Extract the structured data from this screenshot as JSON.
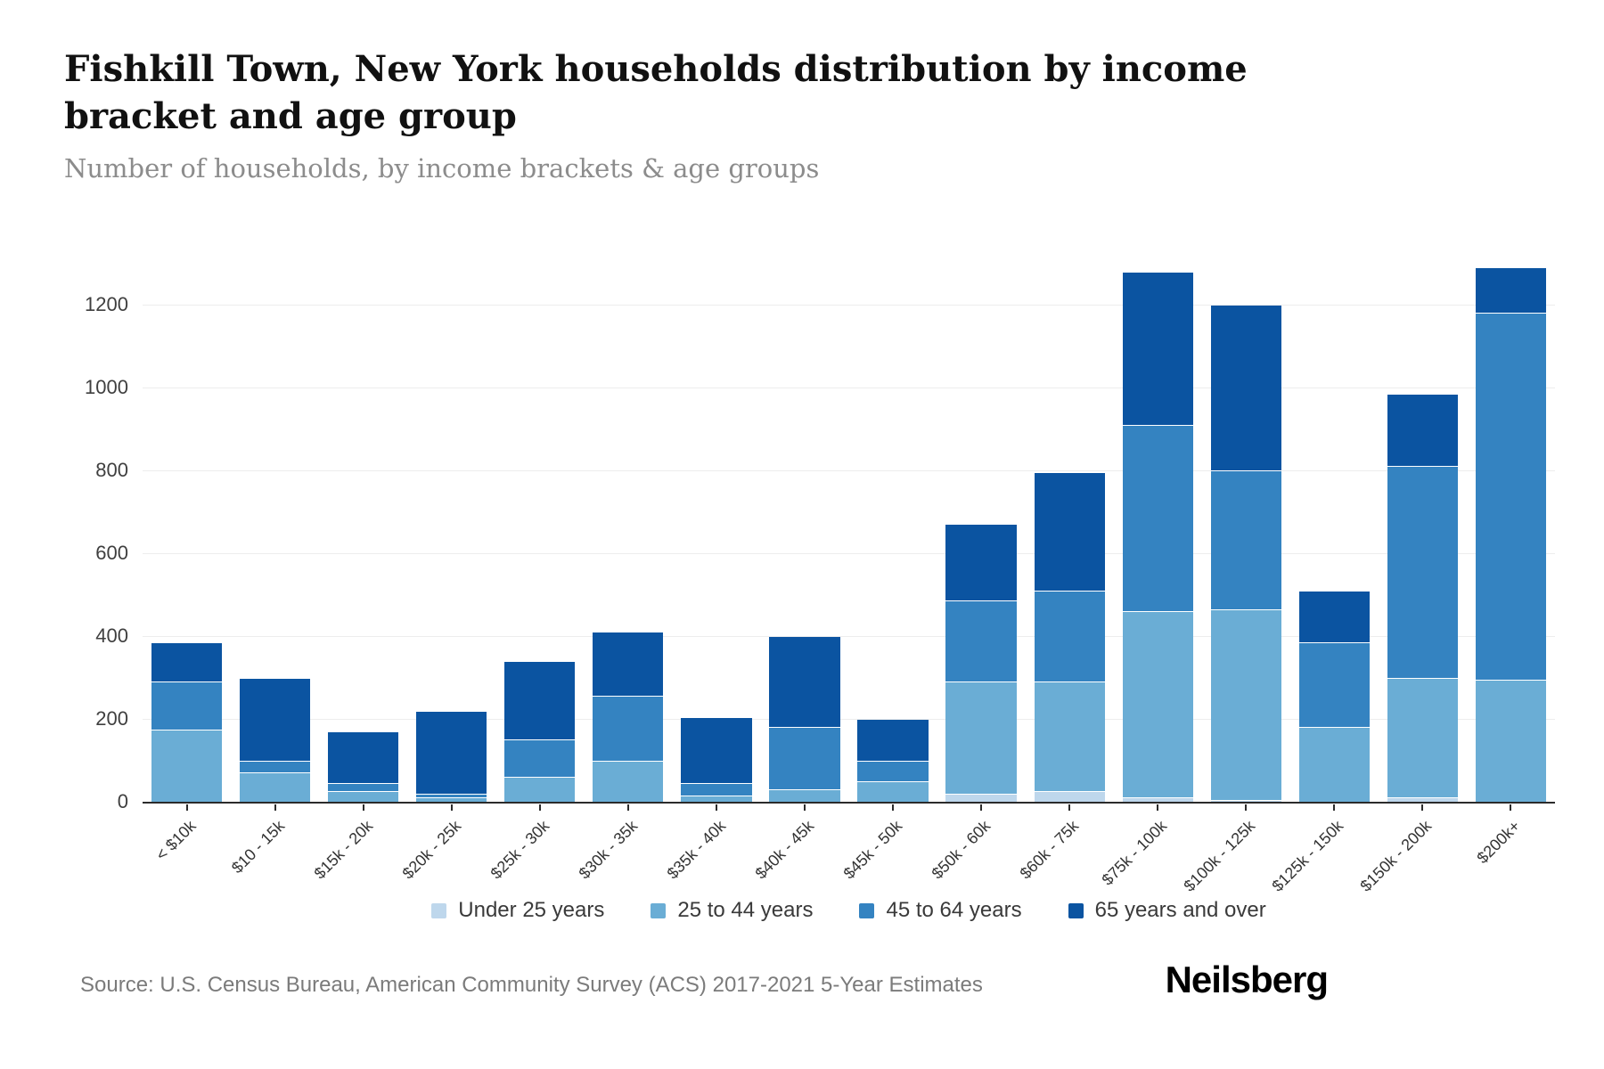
{
  "header": {
    "title": "Fishkill Town, New York households distribution by income bracket and age group",
    "subtitle": "Number of households, by income brackets & age groups"
  },
  "chart_data": {
    "type": "bar",
    "stacked": true,
    "title": "Fishkill Town, New York households distribution by income bracket and age group",
    "subtitle": "Number of households, by income brackets & age groups",
    "xlabel": "",
    "ylabel": "",
    "ylim": [
      0,
      1300
    ],
    "yticks": [
      0,
      200,
      400,
      600,
      800,
      1000,
      1200
    ],
    "grid": true,
    "legend_position": "bottom",
    "categories": [
      "< $10k",
      "$10 - 15k",
      "$15k - 20k",
      "$20k - 25k",
      "$25k - 30k",
      "$30k - 35k",
      "$35k - 40k",
      "$40k - 45k",
      "$45k - 50k",
      "$50k - 60k",
      "$60k - 75k",
      "$75k - 100k",
      "$100k - 125k",
      "$125k - 150k",
      "$150k - 200k",
      "$200k+"
    ],
    "series": [
      {
        "name": "Under 25 years",
        "color": "#bed7ec",
        "values": [
          0,
          0,
          0,
          0,
          0,
          0,
          0,
          0,
          0,
          20,
          25,
          10,
          5,
          0,
          10,
          0
        ]
      },
      {
        "name": "25 to 44 years",
        "color": "#6aadd5",
        "values": [
          175,
          70,
          25,
          10,
          60,
          100,
          15,
          30,
          50,
          270,
          265,
          450,
          460,
          180,
          290,
          295
        ]
      },
      {
        "name": "45 to 64 years",
        "color": "#3483c1",
        "values": [
          115,
          30,
          20,
          10,
          90,
          155,
          30,
          150,
          50,
          195,
          220,
          450,
          335,
          205,
          510,
          885
        ]
      },
      {
        "name": "65 years and over",
        "color": "#0b54a1",
        "values": [
          95,
          200,
          125,
          200,
          190,
          155,
          160,
          220,
          100,
          185,
          285,
          370,
          400,
          125,
          175,
          110
        ]
      }
    ]
  },
  "footer": {
    "source": "Source: U.S. Census Bureau, American Community Survey (ACS) 2017-2021 5-Year Estimates",
    "brand": "Neilsberg"
  }
}
